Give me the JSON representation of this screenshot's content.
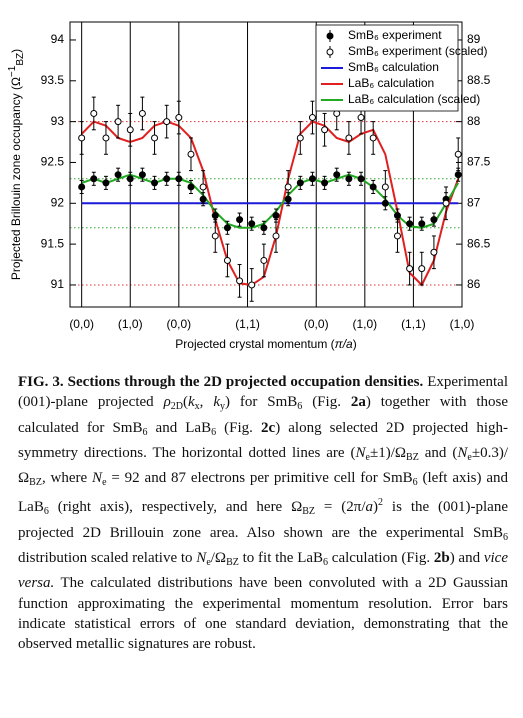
{
  "chart_data": {
    "type": "line",
    "ylabel": [
      "Projected Brillouin zone occupancy (Ω",
      {
        "sup": "−1"
      },
      {
        "sub": "BZ"
      },
      ")"
    ],
    "xlabel": [
      "Projected crystal momentum (",
      {
        "i": "π/a"
      },
      ")"
    ],
    "x": [
      0,
      0.25,
      0.5,
      0.75,
      1,
      1.25,
      1.5,
      1.75,
      2,
      2.25,
      2.5,
      2.75,
      3,
      3.25,
      3.5,
      3.75,
      4,
      4.25,
      4.5,
      4.75,
      5,
      5.25,
      5.5,
      5.75,
      6,
      6.25,
      6.5,
      6.75,
      7,
      7.25,
      7.5,
      7.75
    ],
    "xlim": [
      -0.24,
      7.828
    ],
    "xticks": [
      {
        "value": 0,
        "label": "(0,0)"
      },
      {
        "value": 1,
        "label": "(1,0)"
      },
      {
        "value": 2,
        "label": "(0,0)"
      },
      {
        "value": 3.414,
        "label": "(1,1)"
      },
      {
        "value": 4.828,
        "label": "(0,0)"
      },
      {
        "value": 5.828,
        "label": "(1,0)"
      },
      {
        "value": 6.828,
        "label": "(1,1)"
      },
      {
        "value": 7.828,
        "label": "(1,0)"
      }
    ],
    "ylim": [
      90.73,
      94.22
    ],
    "yticks": [
      91,
      91.5,
      92,
      92.5,
      93,
      93.5,
      94
    ],
    "y2lim": [
      85.73,
      89.22
    ],
    "y2ticks": [
      86,
      86.5,
      87,
      87.5,
      88,
      88.5,
      89
    ],
    "hlines": [
      {
        "value": 88,
        "axis": "y2",
        "color": "#e03030"
      },
      {
        "value": 86,
        "axis": "y2",
        "color": "#e03030"
      },
      {
        "value": 87.3,
        "axis": "y2",
        "color": "#2aa52a"
      },
      {
        "value": 86.7,
        "axis": "y2",
        "color": "#2aa52a"
      }
    ],
    "legend": "top-right",
    "series": [
      {
        "name": "SmB₆ experiment",
        "color": "#000000",
        "marker": "filled",
        "values": [
          92.2,
          92.3,
          92.25,
          92.35,
          92.3,
          92.35,
          92.25,
          92.3,
          92.3,
          92.2,
          92.05,
          91.85,
          91.7,
          91.8,
          91.75,
          91.7,
          91.85,
          92.05,
          92.25,
          92.3,
          92.25,
          92.35,
          92.3,
          92.3,
          92.2,
          92.0,
          91.85,
          91.75,
          91.75,
          91.8,
          92.05,
          92.35
        ],
        "errors": [
          0.08,
          0.08,
          0.08,
          0.08,
          0.08,
          0.08,
          0.08,
          0.08,
          0.08,
          0.08,
          0.08,
          0.08,
          0.08,
          0.08,
          0.08,
          0.08,
          0.08,
          0.08,
          0.08,
          0.08,
          0.08,
          0.08,
          0.08,
          0.08,
          0.08,
          0.08,
          0.08,
          0.08,
          0.08,
          0.08,
          0.08,
          0.08
        ]
      },
      {
        "name": "SmB₆ experiment (scaled)",
        "color": "#000000",
        "marker": "open",
        "values": [
          92.8,
          93.1,
          92.8,
          93.0,
          92.9,
          93.1,
          92.8,
          93.0,
          93.05,
          92.6,
          92.2,
          91.6,
          91.3,
          91.05,
          91.0,
          91.3,
          91.6,
          92.2,
          92.8,
          93.05,
          92.9,
          93.1,
          92.8,
          93.05,
          92.8,
          92.2,
          91.6,
          91.2,
          91.2,
          91.4,
          92.0,
          92.6
        ],
        "errors": [
          0.2,
          0.2,
          0.2,
          0.2,
          0.2,
          0.2,
          0.2,
          0.2,
          0.2,
          0.2,
          0.2,
          0.2,
          0.2,
          0.2,
          0.2,
          0.2,
          0.2,
          0.2,
          0.2,
          0.2,
          0.2,
          0.2,
          0.2,
          0.2,
          0.2,
          0.2,
          0.2,
          0.2,
          0.2,
          0.2,
          0.2,
          0.2
        ]
      },
      {
        "name": "SmB₆ calculation",
        "color": "#1a1ad8",
        "values": [
          92,
          92,
          92,
          92,
          92,
          92,
          92,
          92,
          92,
          92,
          92,
          92,
          92,
          92,
          92,
          92,
          92,
          92,
          92,
          92,
          92,
          92,
          92,
          92,
          92,
          92,
          92,
          92,
          92,
          92,
          92,
          92
        ]
      },
      {
        "name": "LaB₆ calculation",
        "color": "#e02020",
        "axis": "y2",
        "values": [
          87.85,
          88.0,
          87.95,
          87.8,
          87.75,
          87.8,
          87.95,
          88.0,
          87.95,
          87.8,
          87.4,
          86.8,
          86.3,
          86.02,
          86.0,
          86.1,
          86.6,
          87.3,
          87.85,
          88.0,
          87.95,
          87.8,
          87.75,
          87.85,
          87.9,
          87.6,
          86.9,
          86.15,
          86.0,
          86.3,
          86.9,
          87.3
        ]
      },
      {
        "name": "LaB₆ calculation (scaled)",
        "color": "#22aa22",
        "values": [
          92.25,
          92.3,
          92.25,
          92.3,
          92.35,
          92.3,
          92.25,
          92.3,
          92.3,
          92.25,
          92.1,
          91.9,
          91.75,
          91.7,
          91.7,
          91.75,
          91.9,
          92.1,
          92.25,
          92.3,
          92.25,
          92.3,
          92.35,
          92.3,
          92.2,
          92.05,
          91.85,
          91.72,
          91.7,
          91.75,
          92.0,
          92.25
        ]
      }
    ]
  },
  "caption": {
    "runs": [
      {
        "b": "FIG. 3."
      },
      "   ",
      {
        "b": "Sections through the 2D projected occupation densities."
      },
      " Experimental (001)-plane projected ",
      {
        "i": "ρ"
      },
      {
        "sub": "2D"
      },
      "(",
      {
        "i": "k"
      },
      {
        "sub": "x"
      },
      ", ",
      {
        "i": "k"
      },
      {
        "sub": "y"
      },
      ") for SmB",
      {
        "sub": "6"
      },
      " (Fig. ",
      {
        "b": "2a"
      },
      ") together with those calculated for SmB",
      {
        "sub": "6"
      },
      " and LaB",
      {
        "sub": "6"
      },
      " (Fig. ",
      {
        "b": "2c"
      },
      ") along selected 2D projected high-symmetry directions. The horizontal dotted lines are (",
      {
        "i": "N"
      },
      {
        "sub": "e"
      },
      "±1)/Ω",
      {
        "sub": "BZ"
      },
      " and (",
      {
        "i": "N"
      },
      {
        "sub": "e"
      },
      "±0.3)/Ω",
      {
        "sub": "BZ"
      },
      ", where ",
      {
        "i": "N"
      },
      {
        "sub": "e"
      },
      " = 92 and 87 electrons per primitive cell for SmB",
      {
        "sub": "6"
      },
      " (left axis) and LaB",
      {
        "sub": "6"
      },
      " (right axis), respectively, and here Ω",
      {
        "sub": "BZ"
      },
      " = (2π/",
      {
        "i": "a"
      },
      ")",
      {
        "sup": "2"
      },
      " is the (001)-plane projected 2D Brillouin zone area. Also shown are the experimental SmB",
      {
        "sub": "6"
      },
      " distribution scaled relative to ",
      {
        "i": "N"
      },
      {
        "sub": "e"
      },
      "/Ω",
      {
        "sub": "BZ"
      },
      " to fit the LaB",
      {
        "sub": "6"
      },
      " calculation (Fig. ",
      {
        "b": "2b"
      },
      ") and ",
      {
        "i": "vice versa."
      },
      " The calculated distributions have been convoluted with a 2D Gaussian function approximating the experimental momentum resolution. Error bars indicate statistical errors of one standard deviation, demonstrating that the observed metallic signatures are robust."
    ]
  }
}
